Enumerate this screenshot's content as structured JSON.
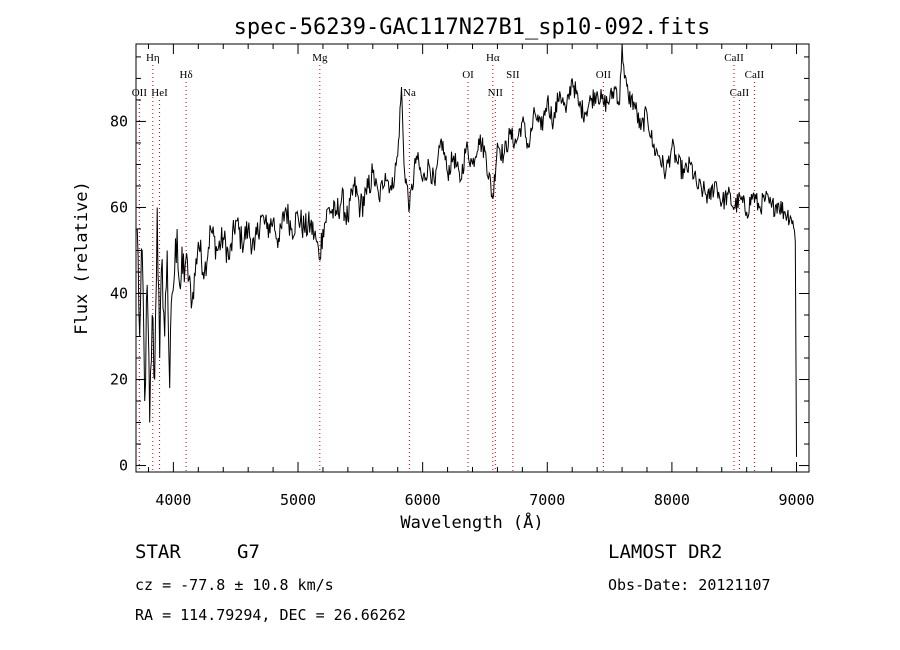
{
  "chart_data": {
    "type": "line",
    "title": "spec-56239-GAC117N27B1_sp10-092.fits",
    "xlabel": "Wavelength (Å)",
    "ylabel": "Flux (relative)",
    "xlim": [
      3700,
      9100
    ],
    "ylim": [
      -1.5,
      98
    ],
    "xticks": [
      "4000",
      "5000",
      "6000",
      "7000",
      "8000",
      "9000"
    ],
    "yticks": [
      "0",
      "20",
      "40",
      "60",
      "80"
    ],
    "grid": false,
    "line_color": "#000000",
    "marker_color": "#cc0000",
    "series": [
      {
        "x": [
          3710,
          3730,
          3750,
          3770,
          3790,
          3810,
          3830,
          3850,
          3870,
          3890,
          3910,
          3930,
          3950,
          3970,
          3990,
          4010,
          4030,
          4050,
          4100,
          4150,
          4200,
          4250,
          4300,
          4350,
          4400,
          4450,
          4500,
          4550,
          4600,
          4650,
          4700,
          4750,
          4800,
          4850,
          4900,
          4950,
          5000,
          5050,
          5100,
          5150,
          5170,
          5200,
          5250,
          5300,
          5350,
          5400,
          5450,
          5500,
          5550,
          5600,
          5650,
          5700,
          5750,
          5800,
          5830,
          5850,
          5895,
          5950,
          6000,
          6050,
          6100,
          6150,
          6200,
          6250,
          6300,
          6350,
          6400,
          6450,
          6500,
          6563,
          6600,
          6650,
          6700,
          6750,
          6800,
          6850,
          6900,
          6950,
          7000,
          7050,
          7100,
          7150,
          7200,
          7250,
          7300,
          7350,
          7400,
          7450,
          7500,
          7550,
          7580,
          7600,
          7620,
          7650,
          7700,
          7750,
          7800,
          7850,
          7900,
          7950,
          8000,
          8050,
          8100,
          8150,
          8200,
          8250,
          8300,
          8350,
          8400,
          8450,
          8500,
          8550,
          8600,
          8650,
          8700,
          8750,
          8800,
          8850,
          8900,
          8950,
          8970,
          8990,
          9000
        ],
        "values": [
          55,
          30,
          50,
          15,
          42,
          10,
          35,
          20,
          60,
          25,
          48,
          30,
          50,
          18,
          40,
          45,
          55,
          42,
          48,
          38,
          52,
          45,
          55,
          50,
          53,
          48,
          57,
          52,
          55,
          50,
          58,
          55,
          57,
          52,
          60,
          55,
          58,
          55,
          56,
          52,
          48,
          55,
          60,
          58,
          62,
          57,
          65,
          60,
          63,
          68,
          62,
          68,
          64,
          72,
          88,
          70,
          60,
          72,
          66,
          70,
          65,
          76,
          68,
          72,
          66,
          74,
          70,
          76,
          73,
          62,
          75,
          72,
          77,
          75,
          80,
          74,
          82,
          78,
          85,
          80,
          87,
          82,
          90,
          84,
          82,
          85,
          87,
          84,
          85,
          88,
          84,
          98,
          90,
          86,
          84,
          78,
          82,
          74,
          72,
          68,
          74,
          70,
          68,
          70,
          65,
          64,
          62,
          66,
          61,
          63,
          60,
          62,
          59,
          63,
          60,
          62,
          60,
          61,
          59,
          58,
          57,
          52,
          2
        ]
      }
    ],
    "lines": [
      {
        "name": "Hη",
        "x": 3835,
        "row": 1
      },
      {
        "name": "OII",
        "x": 3727,
        "row": 3
      },
      {
        "name": "HeI",
        "x": 3889,
        "row": 3
      },
      {
        "name": "Hδ",
        "x": 4102,
        "row": 2
      },
      {
        "name": "Mg",
        "x": 5175,
        "row": 1
      },
      {
        "name": "Na",
        "x": 5894,
        "row": 3
      },
      {
        "name": "OI",
        "x": 6364,
        "row": 2
      },
      {
        "name": "Hα",
        "x": 6563,
        "row": 1
      },
      {
        "name": "NII",
        "x": 6583,
        "row": 3
      },
      {
        "name": "SII",
        "x": 6724,
        "row": 2
      },
      {
        "name": "OII",
        "x": 7450,
        "row": 2
      },
      {
        "name": "CaII",
        "x": 8498,
        "row": 1
      },
      {
        "name": "CaII",
        "x": 8542,
        "row": 3
      },
      {
        "name": "CaII",
        "x": 8662,
        "row": 2
      }
    ]
  },
  "footer": {
    "class_label": "STAR",
    "subclass": "G7",
    "cz": "cz = -77.8 ± 10.8 km/s",
    "radec": "RA = 114.79294, DEC =  26.66262",
    "survey": "LAMOST DR2",
    "obsdate": "Obs-Date: 20121107"
  }
}
